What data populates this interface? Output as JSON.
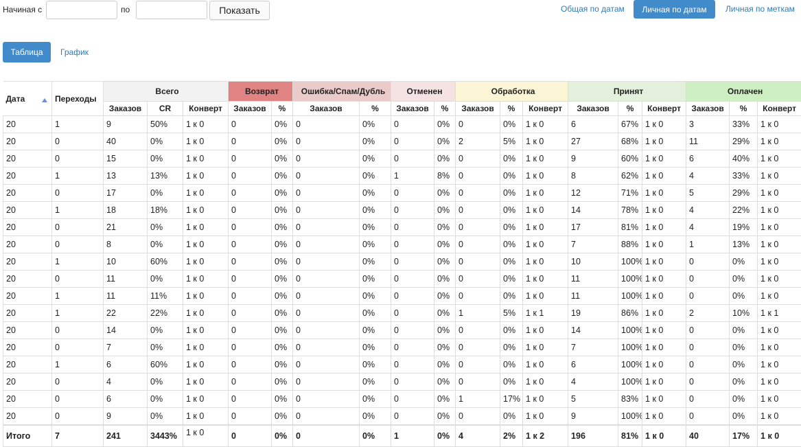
{
  "filter": {
    "from_label": "Начиная с",
    "to_label": "по",
    "submit": "Показать"
  },
  "report_tabs": [
    "Общая по датам",
    "Личная по датам",
    "Личная по меткам"
  ],
  "view_tabs": [
    "Таблица",
    "График"
  ],
  "table": {
    "fixed_headers": [
      "Дата",
      "Переходы"
    ],
    "groups": [
      "Всего",
      "Возврат",
      "Ошибка/Спам/Дубль",
      "Отменен",
      "Обработка",
      "Принят",
      "Оплачен"
    ],
    "subheaders": [
      "Заказов",
      "CR",
      "Конверт",
      "Заказов",
      "%",
      "Заказов",
      "%",
      "Заказов",
      "%",
      "Заказов",
      "%",
      "Конверт",
      "Заказов",
      "%",
      "Конверт",
      "Заказов",
      "%",
      "Конверт"
    ],
    "rows": [
      [
        "20",
        "1",
        "9",
        "50%",
        "1 к 0",
        "0",
        "0%",
        "0",
        "0%",
        "0",
        "0%",
        "0",
        "0%",
        "1 к 0",
        "6",
        "67%",
        "1 к 0",
        "3",
        "33%",
        "1 к 0"
      ],
      [
        "20",
        "0",
        "40",
        "0%",
        "1 к 0",
        "0",
        "0%",
        "0",
        "0%",
        "0",
        "0%",
        "2",
        "5%",
        "1 к 0",
        "27",
        "68%",
        "1 к 0",
        "11",
        "29%",
        "1 к 0"
      ],
      [
        "20",
        "0",
        "15",
        "0%",
        "1 к 0",
        "0",
        "0%",
        "0",
        "0%",
        "0",
        "0%",
        "0",
        "0%",
        "1 к 0",
        "9",
        "60%",
        "1 к 0",
        "6",
        "40%",
        "1 к 0"
      ],
      [
        "20",
        "1",
        "13",
        "13%",
        "1 к 0",
        "0",
        "0%",
        "0",
        "0%",
        "1",
        "8%",
        "0",
        "0%",
        "1 к 0",
        "8",
        "62%",
        "1 к 0",
        "4",
        "33%",
        "1 к 0"
      ],
      [
        "20",
        "0",
        "17",
        "0%",
        "1 к 0",
        "0",
        "0%",
        "0",
        "0%",
        "0",
        "0%",
        "0",
        "0%",
        "1 к 0",
        "12",
        "71%",
        "1 к 0",
        "5",
        "29%",
        "1 к 0"
      ],
      [
        "20",
        "1",
        "18",
        "18%",
        "1 к 0",
        "0",
        "0%",
        "0",
        "0%",
        "0",
        "0%",
        "0",
        "0%",
        "1 к 0",
        "14",
        "78%",
        "1 к 0",
        "4",
        "22%",
        "1 к 0"
      ],
      [
        "20",
        "0",
        "21",
        "0%",
        "1 к 0",
        "0",
        "0%",
        "0",
        "0%",
        "0",
        "0%",
        "0",
        "0%",
        "1 к 0",
        "17",
        "81%",
        "1 к 0",
        "4",
        "19%",
        "1 к 0"
      ],
      [
        "20",
        "0",
        "8",
        "0%",
        "1 к 0",
        "0",
        "0%",
        "0",
        "0%",
        "0",
        "0%",
        "0",
        "0%",
        "1 к 0",
        "7",
        "88%",
        "1 к 0",
        "1",
        "13%",
        "1 к 0"
      ],
      [
        "20",
        "1",
        "10",
        "60%",
        "1 к 0",
        "0",
        "0%",
        "0",
        "0%",
        "0",
        "0%",
        "0",
        "0%",
        "1 к 0",
        "10",
        "100%",
        "1 к 0",
        "0",
        "0%",
        "1 к 0"
      ],
      [
        "20",
        "0",
        "11",
        "0%",
        "1 к 0",
        "0",
        "0%",
        "0",
        "0%",
        "0",
        "0%",
        "0",
        "0%",
        "1 к 0",
        "11",
        "100%",
        "1 к 0",
        "0",
        "0%",
        "1 к 0"
      ],
      [
        "20",
        "1",
        "11",
        "11%",
        "1 к 0",
        "0",
        "0%",
        "0",
        "0%",
        "0",
        "0%",
        "0",
        "0%",
        "1 к 0",
        "11",
        "100%",
        "1 к 0",
        "0",
        "0%",
        "1 к 0"
      ],
      [
        "20",
        "1",
        "22",
        "22%",
        "1 к 0",
        "0",
        "0%",
        "0",
        "0%",
        "0",
        "0%",
        "1",
        "5%",
        "1 к 1",
        "19",
        "86%",
        "1 к 0",
        "2",
        "10%",
        "1 к 1"
      ],
      [
        "20",
        "0",
        "14",
        "0%",
        "1 к 0",
        "0",
        "0%",
        "0",
        "0%",
        "0",
        "0%",
        "0",
        "0%",
        "1 к 0",
        "14",
        "100%",
        "1 к 0",
        "0",
        "0%",
        "1 к 0"
      ],
      [
        "20",
        "0",
        "7",
        "0%",
        "1 к 0",
        "0",
        "0%",
        "0",
        "0%",
        "0",
        "0%",
        "0",
        "0%",
        "1 к 0",
        "7",
        "100%",
        "1 к 0",
        "0",
        "0%",
        "1 к 0"
      ],
      [
        "20",
        "1",
        "6",
        "60%",
        "1 к 0",
        "0",
        "0%",
        "0",
        "0%",
        "0",
        "0%",
        "0",
        "0%",
        "1 к 0",
        "6",
        "100%",
        "1 к 0",
        "0",
        "0%",
        "1 к 0"
      ],
      [
        "20",
        "0",
        "4",
        "0%",
        "1 к 0",
        "0",
        "0%",
        "0",
        "0%",
        "0",
        "0%",
        "0",
        "0%",
        "1 к 0",
        "4",
        "100%",
        "1 к 0",
        "0",
        "0%",
        "1 к 0"
      ],
      [
        "20",
        "0",
        "6",
        "0%",
        "1 к 0",
        "0",
        "0%",
        "0",
        "0%",
        "0",
        "0%",
        "1",
        "17%",
        "1 к 0",
        "5",
        "83%",
        "1 к 0",
        "0",
        "0%",
        "1 к 0"
      ],
      [
        "20",
        "0",
        "9",
        "0%",
        "1 к 0",
        "0",
        "0%",
        "0",
        "0%",
        "0",
        "0%",
        "0",
        "0%",
        "1 к 0",
        "9",
        "100%",
        "1 к 0",
        "0",
        "0%",
        "1 к 0"
      ]
    ],
    "total": [
      "Итого",
      "7",
      "241",
      "3443%",
      "1 к 0",
      "0",
      "0%",
      "0",
      "0%",
      "1",
      "0%",
      "4",
      "2%",
      "1 к 2",
      "196",
      "81%",
      "1 к 0",
      "40",
      "17%",
      "1 к 0"
    ]
  }
}
